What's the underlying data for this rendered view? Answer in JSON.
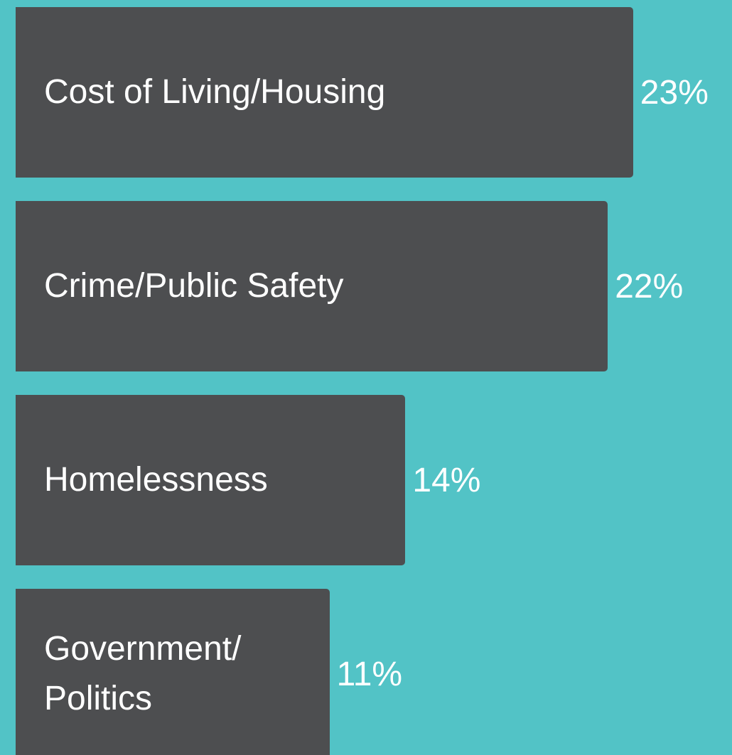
{
  "chart_data": {
    "type": "bar",
    "orientation": "horizontal",
    "categories": [
      "Cost of Living/Housing",
      "Crime/Public Safety",
      "Homelessness",
      "Government/ Politics"
    ],
    "values": [
      23,
      22,
      14,
      11
    ],
    "value_labels": [
      "23%",
      "22%",
      "14%",
      "11%"
    ],
    "color": "#4d4e50"
  }
}
